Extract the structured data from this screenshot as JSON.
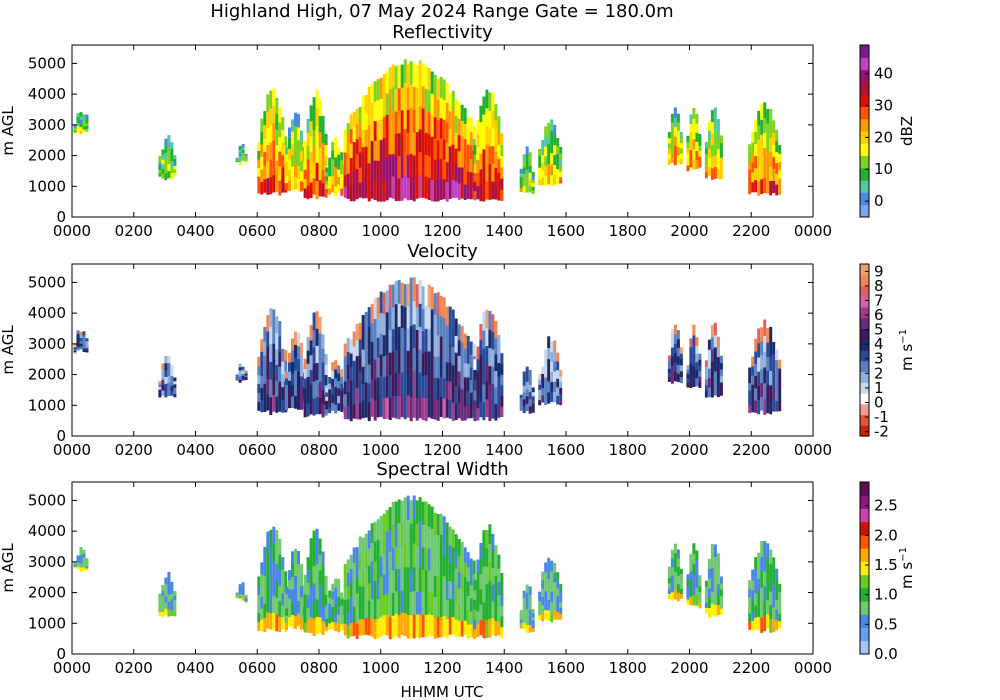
{
  "figure": {
    "suptitle": "Highland High, 07 May 2024 Range Gate = 180.0m",
    "xlabel": "HHMM UTC"
  },
  "chart_data": [
    {
      "type": "heatmap",
      "title": "Reflectivity",
      "ylabel": "m AGL",
      "xticks": [
        "0000",
        "0200",
        "0400",
        "0600",
        "0800",
        "1000",
        "1200",
        "1400",
        "1600",
        "1800",
        "2000",
        "2200",
        "0000"
      ],
      "xlim_hours": [
        0,
        24
      ],
      "yticks": [
        0,
        1000,
        2000,
        3000,
        4000,
        5000
      ],
      "ylim": [
        0,
        5600
      ],
      "colorbar": {
        "label": "dBZ",
        "ticks": [
          "0",
          "10",
          "20",
          "30",
          "40"
        ],
        "range": [
          -5,
          49
        ]
      },
      "echo_segments": [
        {
          "start": 0.05,
          "end": 0.5,
          "base": 2700,
          "top": 3600,
          "level": 0.3
        },
        {
          "start": 2.8,
          "end": 3.3,
          "base": 1200,
          "top": 2700,
          "level": 0.3
        },
        {
          "start": 5.3,
          "end": 5.6,
          "base": 1700,
          "top": 2500,
          "level": 0.3
        },
        {
          "start": 6.0,
          "end": 6.9,
          "base": 700,
          "top": 4300,
          "level": 0.55
        },
        {
          "start": 6.9,
          "end": 7.5,
          "base": 800,
          "top": 3600,
          "level": 0.45
        },
        {
          "start": 7.5,
          "end": 8.2,
          "base": 600,
          "top": 4200,
          "level": 0.55
        },
        {
          "start": 8.2,
          "end": 8.8,
          "base": 700,
          "top": 2600,
          "level": 0.45
        },
        {
          "start": 8.8,
          "end": 13.0,
          "base": 500,
          "top": 5200,
          "level": 0.7
        },
        {
          "start": 13.0,
          "end": 13.9,
          "base": 500,
          "top": 4300,
          "level": 0.6
        },
        {
          "start": 14.5,
          "end": 14.9,
          "base": 700,
          "top": 2400,
          "level": 0.35
        },
        {
          "start": 15.1,
          "end": 15.8,
          "base": 1000,
          "top": 3300,
          "level": 0.4
        },
        {
          "start": 19.3,
          "end": 19.7,
          "base": 1700,
          "top": 3800,
          "level": 0.45
        },
        {
          "start": 19.9,
          "end": 20.3,
          "base": 1500,
          "top": 3700,
          "level": 0.5
        },
        {
          "start": 20.5,
          "end": 21.0,
          "base": 1200,
          "top": 3800,
          "level": 0.45
        },
        {
          "start": 21.9,
          "end": 22.9,
          "base": 700,
          "top": 3800,
          "level": 0.55
        }
      ]
    },
    {
      "type": "heatmap",
      "title": "Velocity",
      "ylabel": "m s⁻¹ colorbar",
      "yaxis_label": "m AGL",
      "xticks": [
        "0000",
        "0200",
        "0400",
        "0600",
        "0800",
        "1000",
        "1200",
        "1400",
        "1600",
        "1800",
        "2000",
        "2200",
        "0000"
      ],
      "xlim_hours": [
        0,
        24
      ],
      "yticks": [
        0,
        1000,
        2000,
        3000,
        4000,
        5000
      ],
      "ylim": [
        0,
        5600
      ],
      "colorbar": {
        "label": "m s",
        "label_exponent": "−1",
        "ticks": [
          "-2",
          "-1",
          "0",
          "1",
          "2",
          "3",
          "4",
          "5",
          "6",
          "7",
          "8",
          "9"
        ],
        "range": [
          -2.3,
          9.5
        ]
      },
      "echo_segments": [
        {
          "start": 0.05,
          "end": 0.5,
          "base": 2700,
          "top": 3600,
          "level": 0.3
        },
        {
          "start": 2.8,
          "end": 3.3,
          "base": 1200,
          "top": 2700,
          "level": 0.3
        },
        {
          "start": 5.3,
          "end": 5.6,
          "base": 1700,
          "top": 2500,
          "level": 0.3
        },
        {
          "start": 6.0,
          "end": 6.9,
          "base": 700,
          "top": 4300,
          "level": 0.55
        },
        {
          "start": 6.9,
          "end": 7.5,
          "base": 800,
          "top": 3600,
          "level": 0.45
        },
        {
          "start": 7.5,
          "end": 8.2,
          "base": 600,
          "top": 4200,
          "level": 0.55
        },
        {
          "start": 8.2,
          "end": 8.8,
          "base": 700,
          "top": 2600,
          "level": 0.45
        },
        {
          "start": 8.8,
          "end": 13.0,
          "base": 500,
          "top": 5200,
          "level": 0.7
        },
        {
          "start": 13.0,
          "end": 13.9,
          "base": 500,
          "top": 4300,
          "level": 0.6
        },
        {
          "start": 14.5,
          "end": 14.9,
          "base": 700,
          "top": 2400,
          "level": 0.35
        },
        {
          "start": 15.1,
          "end": 15.8,
          "base": 1000,
          "top": 3300,
          "level": 0.4
        },
        {
          "start": 19.3,
          "end": 19.7,
          "base": 1700,
          "top": 3800,
          "level": 0.45
        },
        {
          "start": 19.9,
          "end": 20.3,
          "base": 1500,
          "top": 3700,
          "level": 0.5
        },
        {
          "start": 20.5,
          "end": 21.0,
          "base": 1200,
          "top": 3800,
          "level": 0.45
        },
        {
          "start": 21.9,
          "end": 22.9,
          "base": 700,
          "top": 3800,
          "level": 0.55
        }
      ]
    },
    {
      "type": "heatmap",
      "title": "Spectral Width",
      "yaxis_label": "m AGL",
      "xticks": [
        "0000",
        "0200",
        "0400",
        "0600",
        "0800",
        "1000",
        "1200",
        "1400",
        "1600",
        "1800",
        "2000",
        "2200",
        "0000"
      ],
      "xlim_hours": [
        0,
        24
      ],
      "yticks": [
        0,
        1000,
        2000,
        3000,
        4000,
        5000
      ],
      "ylim": [
        0,
        5600
      ],
      "colorbar": {
        "label": "m s",
        "label_exponent": "−1",
        "ticks": [
          "0.0",
          "0.5",
          "1.0",
          "1.5",
          "2.0",
          "2.5"
        ],
        "range": [
          0,
          2.9
        ]
      },
      "echo_segments": [
        {
          "start": 0.05,
          "end": 0.5,
          "base": 2700,
          "top": 3600,
          "level": 0.3
        },
        {
          "start": 2.8,
          "end": 3.3,
          "base": 1200,
          "top": 2700,
          "level": 0.3
        },
        {
          "start": 5.3,
          "end": 5.6,
          "base": 1700,
          "top": 2500,
          "level": 0.3
        },
        {
          "start": 6.0,
          "end": 6.9,
          "base": 700,
          "top": 4300,
          "level": 0.55
        },
        {
          "start": 6.9,
          "end": 7.5,
          "base": 800,
          "top": 3600,
          "level": 0.45
        },
        {
          "start": 7.5,
          "end": 8.2,
          "base": 600,
          "top": 4200,
          "level": 0.55
        },
        {
          "start": 8.2,
          "end": 8.8,
          "base": 700,
          "top": 2600,
          "level": 0.45
        },
        {
          "start": 8.8,
          "end": 13.0,
          "base": 500,
          "top": 5200,
          "level": 0.7
        },
        {
          "start": 13.0,
          "end": 13.9,
          "base": 500,
          "top": 4300,
          "level": 0.6
        },
        {
          "start": 14.5,
          "end": 14.9,
          "base": 700,
          "top": 2400,
          "level": 0.35
        },
        {
          "start": 15.1,
          "end": 15.8,
          "base": 1000,
          "top": 3300,
          "level": 0.4
        },
        {
          "start": 19.3,
          "end": 19.7,
          "base": 1700,
          "top": 3800,
          "level": 0.45
        },
        {
          "start": 19.9,
          "end": 20.3,
          "base": 1500,
          "top": 3700,
          "level": 0.5
        },
        {
          "start": 20.5,
          "end": 21.0,
          "base": 1200,
          "top": 3800,
          "level": 0.45
        },
        {
          "start": 21.9,
          "end": 22.9,
          "base": 700,
          "top": 3800,
          "level": 0.55
        }
      ]
    }
  ]
}
